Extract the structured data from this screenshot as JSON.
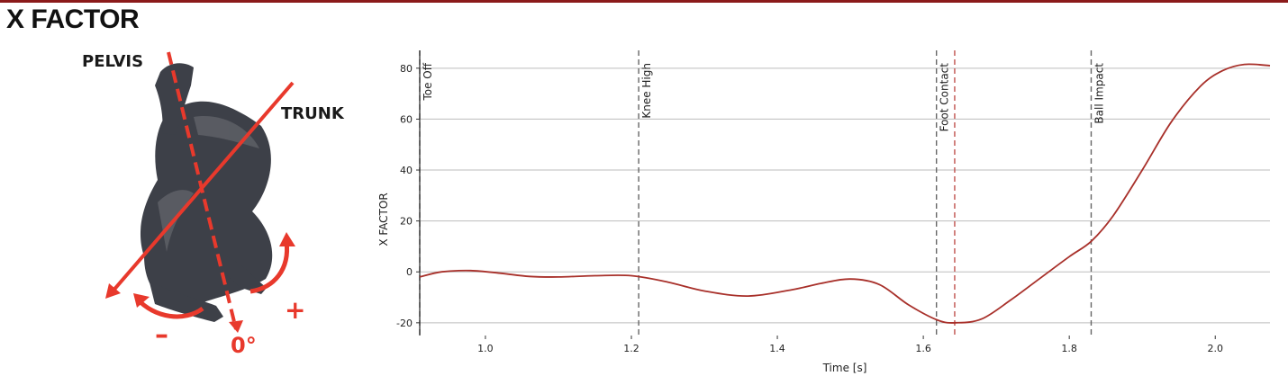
{
  "header": {
    "title": "X FACTOR"
  },
  "illustration": {
    "pelvis_label": "PELVIS",
    "trunk_label": "TRUNK",
    "minus_label": "–",
    "plus_label": "+",
    "zero_label": "0°",
    "accent_color": "#e8392c",
    "body_color": "#3d4048"
  },
  "chart_data": {
    "type": "line",
    "title": "",
    "xlabel": "Time [s]",
    "ylabel": "X FACTOR",
    "xlim": [
      0.91,
      2.075
    ],
    "ylim": [
      -25,
      87
    ],
    "xticks": [
      1.0,
      1.2,
      1.4,
      1.6,
      1.8,
      2.0
    ],
    "xtick_labels": [
      "1.0",
      "1.2",
      "1.4",
      "1.6",
      "1.8",
      "2.0"
    ],
    "yticks": [
      -20,
      0,
      20,
      40,
      60,
      80
    ],
    "ytick_labels": [
      "-20",
      "0",
      "20",
      "40",
      "60",
      "80"
    ],
    "grid": "horizontal",
    "line_color": "#a8302a",
    "series": [
      {
        "x": [
          0.91,
          0.94,
          0.98,
          1.02,
          1.06,
          1.1,
          1.15,
          1.2,
          1.25,
          1.3,
          1.36,
          1.42,
          1.46,
          1.5,
          1.54,
          1.58,
          1.62,
          1.645,
          1.68,
          1.72,
          1.76,
          1.8,
          1.83,
          1.86,
          1.9,
          1.94,
          1.98,
          2.01,
          2.04,
          2.075
        ],
        "y": [
          -2,
          0,
          0.5,
          -0.5,
          -1.8,
          -2,
          -1.5,
          -1.5,
          -4,
          -7.5,
          -9.5,
          -7,
          -4.5,
          -2.8,
          -5,
          -13,
          -19,
          -20,
          -18.5,
          -11,
          -2.5,
          6,
          12,
          22,
          40,
          59,
          73,
          79,
          81.5,
          81
        ]
      }
    ],
    "events": [
      {
        "label": "Toe Off",
        "x": 0.91
      },
      {
        "label": "Knee High",
        "x": 1.21
      },
      {
        "label": "Foot Contact",
        "x": 1.618
      },
      {
        "label": "Ball Impact",
        "x": 1.83
      }
    ],
    "marker": {
      "x": 1.643,
      "color": "#c0504d"
    }
  }
}
